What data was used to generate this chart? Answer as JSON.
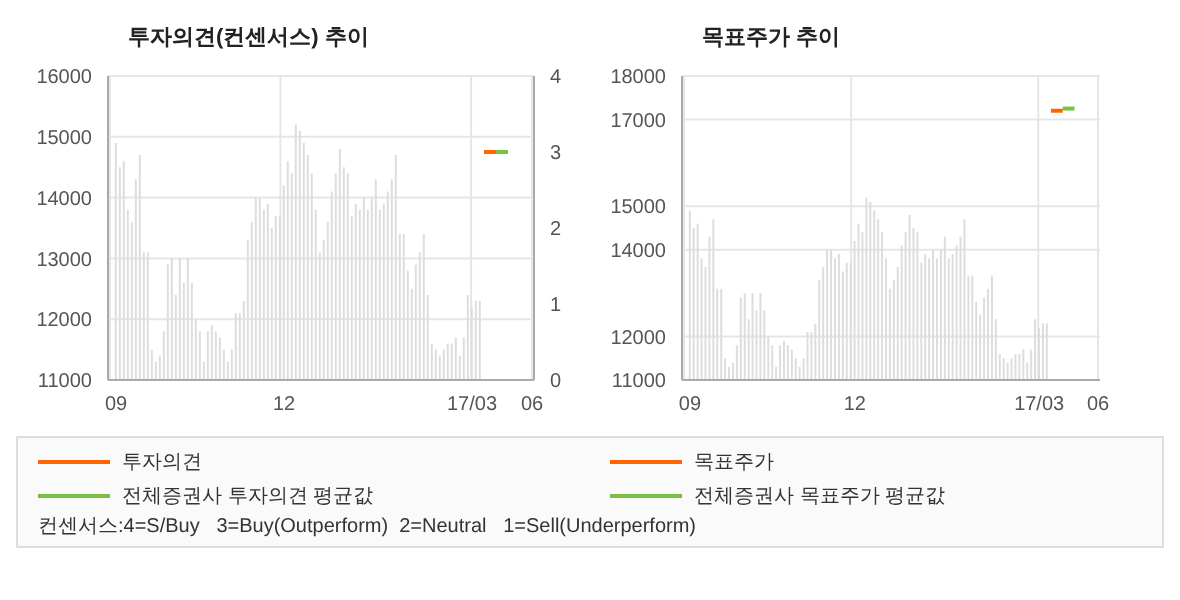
{
  "chart_data": [
    {
      "type": "bar",
      "title": "투자의견(컨센서스) 추이",
      "categories": [
        "09",
        null,
        null,
        null,
        null,
        null,
        null,
        null,
        null,
        null,
        null,
        null,
        null,
        null,
        null,
        null,
        null,
        null,
        null,
        null,
        null,
        null,
        null,
        null,
        null,
        null,
        null,
        null,
        null,
        null,
        null,
        null,
        null,
        null,
        null,
        null,
        null,
        null,
        null,
        null,
        null,
        null,
        "12",
        null,
        null,
        null,
        null,
        null,
        null,
        null,
        null,
        null,
        null,
        null,
        null,
        null,
        null,
        null,
        null,
        null,
        null,
        null,
        null,
        null,
        null,
        null,
        null,
        null,
        null,
        null,
        null,
        null,
        null,
        null,
        null,
        null,
        null,
        null,
        null,
        null,
        null,
        null,
        null,
        null,
        null,
        null,
        null,
        null,
        null,
        "17/03",
        null,
        null,
        null,
        null,
        null,
        null,
        null,
        null,
        null,
        null,
        null,
        null,
        null,
        null,
        "06"
      ],
      "series": [
        {
          "color": "#dddddd",
          "values": [
            14900,
            14500,
            14600,
            13800,
            13600,
            14300,
            14700,
            13100,
            13100,
            11500,
            11300,
            11400,
            11800,
            12900,
            13000,
            12400,
            13000,
            12600,
            13000,
            12600,
            12000,
            11800,
            11300,
            11800,
            11900,
            11800,
            11700,
            11500,
            11300,
            11500,
            12100,
            12100,
            12300,
            13300,
            13600,
            14000,
            14000,
            13800,
            13900,
            13500,
            13700,
            13700,
            14200,
            14600,
            14400,
            15200,
            15100,
            14900,
            14700,
            14400,
            13800,
            13100,
            13300,
            13600,
            14100,
            14400,
            14800,
            14500,
            14400,
            13700,
            13900,
            13800,
            14000,
            13800,
            14000,
            14300,
            13800,
            13900,
            14100,
            14300,
            14700,
            13400,
            13400,
            12800,
            12500,
            12900,
            13100,
            13400,
            12400,
            11600,
            11500,
            11400,
            11500,
            11600,
            11600,
            11700,
            11400,
            11700,
            12400,
            12200,
            12300,
            12300,
            null,
            null,
            null,
            null,
            null,
            null,
            null,
            null,
            null,
            null,
            null,
            null,
            null
          ]
        },
        {
          "type": "line",
          "name": "투자의견",
          "color": "#ff6600",
          "axis": "y2",
          "values": [
            null,
            null,
            null,
            null,
            null,
            null,
            null,
            null,
            null,
            null,
            null,
            null,
            null,
            null,
            null,
            null,
            null,
            null,
            null,
            null,
            null,
            null,
            null,
            null,
            null,
            null,
            null,
            null,
            null,
            null,
            null,
            null,
            null,
            null,
            null,
            null,
            null,
            null,
            null,
            null,
            null,
            null,
            null,
            null,
            null,
            null,
            null,
            null,
            null,
            null,
            null,
            null,
            null,
            null,
            null,
            null,
            null,
            null,
            null,
            null,
            null,
            null,
            null,
            null,
            null,
            null,
            null,
            null,
            null,
            null,
            null,
            null,
            null,
            null,
            null,
            null,
            null,
            null,
            null,
            null,
            null,
            null,
            null,
            null,
            null,
            null,
            null,
            null,
            null,
            null,
            null,
            null,
            3,
            3,
            3,
            3,
            null,
            null,
            null,
            null,
            null,
            null,
            null,
            null,
            null
          ]
        },
        {
          "type": "line",
          "name": "전체증권사 투자의견 평균값",
          "color": "#7ac143",
          "axis": "y2",
          "values": [
            null,
            null,
            null,
            null,
            null,
            null,
            null,
            null,
            null,
            null,
            null,
            null,
            null,
            null,
            null,
            null,
            null,
            null,
            null,
            null,
            null,
            null,
            null,
            null,
            null,
            null,
            null,
            null,
            null,
            null,
            null,
            null,
            null,
            null,
            null,
            null,
            null,
            null,
            null,
            null,
            null,
            null,
            null,
            null,
            null,
            null,
            null,
            null,
            null,
            null,
            null,
            null,
            null,
            null,
            null,
            null,
            null,
            null,
            null,
            null,
            null,
            null,
            null,
            null,
            null,
            null,
            null,
            null,
            null,
            null,
            null,
            null,
            null,
            null,
            null,
            null,
            null,
            null,
            null,
            null,
            null,
            null,
            null,
            null,
            null,
            null,
            null,
            null,
            null,
            null,
            null,
            null,
            null,
            null,
            null,
            3,
            3,
            3,
            3,
            null,
            null,
            null,
            null,
            null,
            null
          ]
        }
      ],
      "ylim": [
        11000,
        16000
      ],
      "yticks": [
        11000,
        12000,
        13000,
        14000,
        15000,
        16000
      ],
      "y2lim": [
        0,
        4
      ],
      "y2ticks": [
        0,
        1,
        2,
        3,
        4
      ],
      "grid": true,
      "legend": "bottom",
      "annotations": [
        "컨센서스:4=S/Buy   3=Buy(Outperform)  2=Neutral   1=Sell(Underperform)"
      ]
    },
    {
      "type": "bar",
      "title": "목표주가 추이",
      "categories": [
        "09",
        null,
        null,
        null,
        null,
        null,
        null,
        null,
        null,
        null,
        null,
        null,
        null,
        null,
        null,
        null,
        null,
        null,
        null,
        null,
        null,
        null,
        null,
        null,
        null,
        null,
        null,
        null,
        null,
        null,
        null,
        null,
        null,
        null,
        null,
        null,
        null,
        null,
        null,
        null,
        null,
        null,
        "12",
        null,
        null,
        null,
        null,
        null,
        null,
        null,
        null,
        null,
        null,
        null,
        null,
        null,
        null,
        null,
        null,
        null,
        null,
        null,
        null,
        null,
        null,
        null,
        null,
        null,
        null,
        null,
        null,
        null,
        null,
        null,
        null,
        null,
        null,
        null,
        null,
        null,
        null,
        null,
        null,
        null,
        null,
        null,
        null,
        null,
        null,
        "17/03",
        null,
        null,
        null,
        null,
        null,
        null,
        null,
        null,
        null,
        null,
        null,
        null,
        null,
        null,
        "06"
      ],
      "series": [
        {
          "color": "#dddddd",
          "values": [
            14900,
            14500,
            14600,
            13800,
            13600,
            14300,
            14700,
            13100,
            13100,
            11500,
            11300,
            11400,
            11800,
            12900,
            13000,
            12400,
            13000,
            12600,
            13000,
            12600,
            12000,
            11800,
            11300,
            11800,
            11900,
            11800,
            11700,
            11500,
            11300,
            11500,
            12100,
            12100,
            12300,
            13300,
            13600,
            14000,
            14000,
            13800,
            13900,
            13500,
            13700,
            13700,
            14200,
            14600,
            14400,
            15200,
            15100,
            14900,
            14700,
            14400,
            13800,
            13100,
            13300,
            13600,
            14100,
            14400,
            14800,
            14500,
            14400,
            13700,
            13900,
            13800,
            14000,
            13800,
            14000,
            14300,
            13800,
            13900,
            14100,
            14300,
            14700,
            13400,
            13400,
            12800,
            12500,
            12900,
            13100,
            13400,
            12400,
            11600,
            11500,
            11400,
            11500,
            11600,
            11600,
            11700,
            11400,
            11700,
            12400,
            12200,
            12300,
            12300,
            null,
            null,
            null,
            null,
            null,
            null,
            null,
            null,
            null,
            null,
            null,
            null,
            null
          ]
        },
        {
          "type": "line",
          "name": "목표주가",
          "color": "#ff6600",
          "values": [
            null,
            null,
            null,
            null,
            null,
            null,
            null,
            null,
            null,
            null,
            null,
            null,
            null,
            null,
            null,
            null,
            null,
            null,
            null,
            null,
            null,
            null,
            null,
            null,
            null,
            null,
            null,
            null,
            null,
            null,
            null,
            null,
            null,
            null,
            null,
            null,
            null,
            null,
            null,
            null,
            null,
            null,
            null,
            null,
            null,
            null,
            null,
            null,
            null,
            null,
            null,
            null,
            null,
            null,
            null,
            null,
            null,
            null,
            null,
            null,
            null,
            null,
            null,
            null,
            null,
            null,
            null,
            null,
            null,
            null,
            null,
            null,
            null,
            null,
            null,
            null,
            null,
            null,
            null,
            null,
            null,
            null,
            null,
            null,
            null,
            null,
            null,
            null,
            null,
            null,
            null,
            null,
            17200,
            17200,
            17200,
            17200,
            null,
            null,
            null,
            null,
            null,
            null,
            null,
            null,
            null
          ]
        },
        {
          "type": "line",
          "name": "전체증권사 목표주가 평균값",
          "color": "#7ac143",
          "values": [
            null,
            null,
            null,
            null,
            null,
            null,
            null,
            null,
            null,
            null,
            null,
            null,
            null,
            null,
            null,
            null,
            null,
            null,
            null,
            null,
            null,
            null,
            null,
            null,
            null,
            null,
            null,
            null,
            null,
            null,
            null,
            null,
            null,
            null,
            null,
            null,
            null,
            null,
            null,
            null,
            null,
            null,
            null,
            null,
            null,
            null,
            null,
            null,
            null,
            null,
            null,
            null,
            null,
            null,
            null,
            null,
            null,
            null,
            null,
            null,
            null,
            null,
            null,
            null,
            null,
            null,
            null,
            null,
            null,
            null,
            null,
            null,
            null,
            null,
            null,
            null,
            null,
            null,
            null,
            null,
            null,
            null,
            null,
            null,
            null,
            null,
            null,
            null,
            null,
            null,
            null,
            null,
            null,
            null,
            null,
            17250,
            17250,
            17250,
            17250,
            null,
            null,
            null,
            null,
            null,
            null
          ]
        }
      ],
      "ylim": [
        11000,
        18000
      ],
      "yticks": [
        11000,
        12000,
        14000,
        15000,
        17000,
        18000
      ],
      "grid": true,
      "legend": "bottom"
    }
  ]
}
